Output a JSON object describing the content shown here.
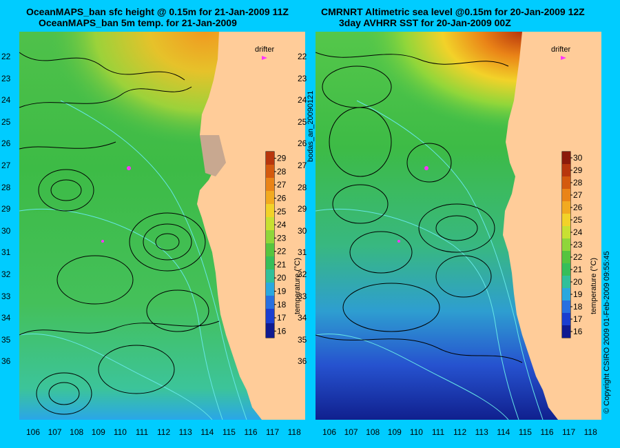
{
  "left_panel": {
    "title_line1": "OceanMAPS_ban sfc height @ 0.15m for 21-Jan-2009 11Z",
    "title_line2": "OceanMAPS_ban 5m temp. for 21-Jan-2009",
    "drifter_label": "drifter",
    "colorbar_ticks": [
      "16",
      "17",
      "18",
      "19",
      "20",
      "21",
      "22",
      "23",
      "24",
      "25",
      "26",
      "27",
      "28",
      "29"
    ],
    "colorbar_label": "temperature (°C)"
  },
  "right_panel": {
    "title_line1": "CMRNRT Altimetric sea level  @0.15m  for 20-Jan-2009 12Z",
    "title_line2": "3day AVHRR SST for 20-Jan-2009 00Z",
    "drifter_label": "drifter",
    "colorbar_ticks": [
      "16",
      "17",
      "18",
      "19",
      "20",
      "21",
      "22",
      "23",
      "24",
      "25",
      "26",
      "27",
      "28",
      "29",
      "30"
    ],
    "colorbar_label": "temperature (°C)"
  },
  "lat_ticks": [
    "22",
    "23",
    "24",
    "25",
    "26",
    "27",
    "28",
    "29",
    "30",
    "31",
    "32",
    "33",
    "34",
    "35",
    "36"
  ],
  "lon_ticks": [
    "106",
    "107",
    "108",
    "109",
    "110",
    "111",
    "112",
    "113",
    "114",
    "115",
    "116",
    "117",
    "118"
  ],
  "middle_vertical_text": "bodas_an_20090121",
  "right_vertical_text": "© Copyright CSIRO 2009   01-Feb-2009 09:55:45",
  "colors": {
    "background": "#00ccff",
    "land": "#ffcc99",
    "contour": "#000000",
    "bathymetry": "#66e6e6",
    "drifter": "#ff33ff"
  }
}
